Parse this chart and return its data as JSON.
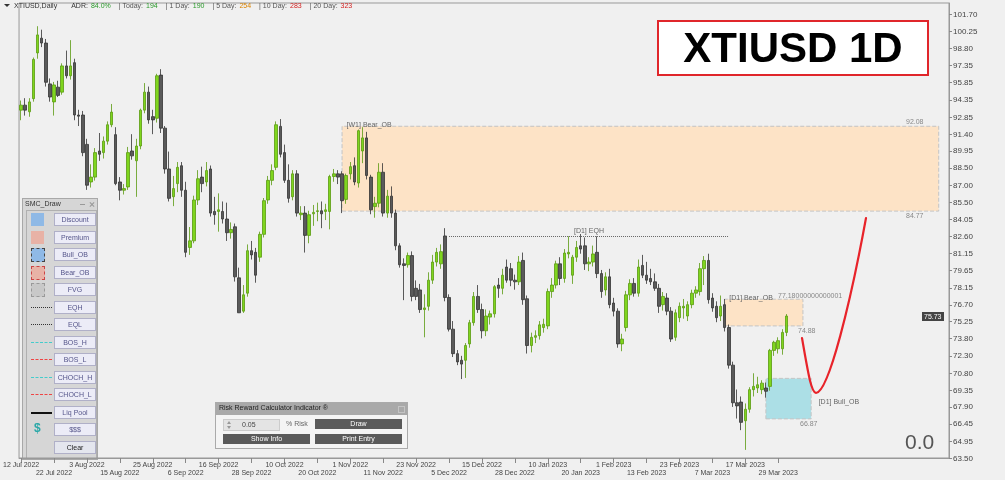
{
  "chart_data": {
    "type": "candlestick",
    "title": "XTIUSD 1D",
    "categories": [
      "12 Jul 2022",
      null,
      null,
      null,
      null,
      null,
      null,
      null,
      "22 Jul 2022",
      null,
      null,
      null,
      null,
      null,
      null,
      null,
      "3 Aug 2022",
      null,
      null,
      null,
      null,
      null,
      null,
      null,
      "15 Aug 2022",
      null,
      null,
      null,
      null,
      null,
      null,
      null,
      "25 Aug 2022",
      null,
      null,
      null,
      null,
      null,
      null,
      null,
      "6 Sep 2022",
      null,
      null,
      null,
      null,
      null,
      null,
      null,
      "16 Sep 2022",
      null,
      null,
      null,
      null,
      null,
      null,
      null,
      "28 Sep 2022",
      null,
      null,
      null,
      null,
      null,
      null,
      null,
      "10 Oct 2022",
      null,
      null,
      null,
      null,
      null,
      null,
      null,
      "20 Oct 2022",
      null,
      null,
      null,
      null,
      null,
      null,
      null,
      "1 Nov 2022",
      null,
      null,
      null,
      null,
      null,
      null,
      null,
      "11 Nov 2022",
      null,
      null,
      null,
      null,
      null,
      null,
      null,
      "23 Nov 2022",
      null,
      null,
      null,
      null,
      null,
      null,
      null,
      "5 Dec 2022",
      null,
      null,
      null,
      null,
      null,
      null,
      null,
      "15 Dec 2022",
      null,
      null,
      null,
      null,
      null,
      null,
      null,
      "28 Dec 2022",
      null,
      null,
      null,
      null,
      null,
      null,
      null,
      "10 Jan 2023",
      null,
      null,
      null,
      null,
      null,
      null,
      null,
      "20 Jan 2023",
      null,
      null,
      null,
      null,
      null,
      null,
      null,
      "1 Feb 2023",
      null,
      null,
      null,
      null,
      null,
      null,
      null,
      "13 Feb 2023",
      null,
      null,
      null,
      null,
      null,
      null,
      null,
      "23 Feb 2023",
      null,
      null,
      null,
      null,
      null,
      null,
      null,
      "7 Mar 2023",
      null,
      null,
      null,
      null,
      null,
      null,
      null,
      "17 Mar 2023",
      null,
      null,
      null,
      null,
      null,
      null,
      null,
      "29 Mar 2023",
      null,
      null,
      null,
      null,
      null,
      null,
      null,
      null,
      null,
      null,
      null,
      null,
      null,
      null,
      null,
      null,
      null,
      null,
      null,
      null,
      null,
      null,
      null,
      null,
      null,
      null,
      null,
      null,
      null,
      null,
      null,
      null,
      null,
      null,
      null,
      null,
      null,
      null,
      null,
      null,
      null
    ],
    "ohlc": [
      [
        93.47,
        94.3,
        92.6,
        93.9
      ],
      [
        93.9,
        94.5,
        93.0,
        93.47
      ],
      [
        93.33,
        94.5,
        92.9,
        94.18
      ],
      [
        94.46,
        98.0,
        94.2,
        97.84
      ],
      [
        98.4,
        100.7,
        97.9,
        99.95
      ],
      [
        99.67,
        100.4,
        98.9,
        99.25
      ],
      [
        99.25,
        99.6,
        95.5,
        95.87
      ],
      [
        95.73,
        96.2,
        94.2,
        94.6
      ],
      [
        94.18,
        95.9,
        93.0,
        95.64
      ],
      [
        95.45,
        96.0,
        94.6,
        94.74
      ],
      [
        95.02,
        97.5,
        94.8,
        97.28
      ],
      [
        97.28,
        98.6,
        96.2,
        96.43
      ],
      [
        96.43,
        99.5,
        96.1,
        97.28
      ],
      [
        97.56,
        97.9,
        92.6,
        93.05
      ],
      [
        93.05,
        93.5,
        92.1,
        92.95
      ],
      [
        93.05,
        93.4,
        89.5,
        89.81
      ],
      [
        90.52,
        91.0,
        86.6,
        87.0
      ],
      [
        87.28,
        88.8,
        86.8,
        87.7
      ],
      [
        87.7,
        90.2,
        87.4,
        89.81
      ],
      [
        89.95,
        91.5,
        89.1,
        89.67
      ],
      [
        89.81,
        91.2,
        89.3,
        90.8
      ],
      [
        90.8,
        92.5,
        90.5,
        92.21
      ],
      [
        92.21,
        94.0,
        92.0,
        93.3
      ],
      [
        91.36,
        92.0,
        87.0,
        87.14
      ],
      [
        87.28,
        87.7,
        85.7,
        86.57
      ],
      [
        86.57,
        87.1,
        86.2,
        86.71
      ],
      [
        86.85,
        90.3,
        86.6,
        89.81
      ],
      [
        89.95,
        91.4,
        89.2,
        89.53
      ],
      [
        89.11,
        91.0,
        86.0,
        90.38
      ],
      [
        90.38,
        93.6,
        90.1,
        93.47
      ],
      [
        93.47,
        95.8,
        93.2,
        95.02
      ],
      [
        95.02,
        95.5,
        92.3,
        92.63
      ],
      [
        92.91,
        93.5,
        91.4,
        92.63
      ],
      [
        92.77,
        96.6,
        92.4,
        96.43
      ],
      [
        96.49,
        97.0,
        91.5,
        91.92
      ],
      [
        91.92,
        92.1,
        88.0,
        88.4
      ],
      [
        88.4,
        89.9,
        85.6,
        85.87
      ],
      [
        86.01,
        87.8,
        85.2,
        86.71
      ],
      [
        87.14,
        89.0,
        86.4,
        88.54
      ],
      [
        88.68,
        89.0,
        86.0,
        86.57
      ],
      [
        86.57,
        87.3,
        80.8,
        81.22
      ],
      [
        81.64,
        83.4,
        81.0,
        82.21
      ],
      [
        82.21,
        86.1,
        82.0,
        85.73
      ],
      [
        85.73,
        88.3,
        85.3,
        87.56
      ],
      [
        87.7,
        88.6,
        86.4,
        87.14
      ],
      [
        87.28,
        89.0,
        86.9,
        88.26
      ],
      [
        88.4,
        88.7,
        84.3,
        84.6
      ],
      [
        84.74,
        86.0,
        83.6,
        84.46
      ],
      [
        84.74,
        86.3,
        83.0,
        84.88
      ],
      [
        84.74,
        85.6,
        83.7,
        84.09
      ],
      [
        84.09,
        85.5,
        82.2,
        82.91
      ],
      [
        82.91,
        83.8,
        82.4,
        83.19
      ],
      [
        83.42,
        83.7,
        78.7,
        79.11
      ],
      [
        79.02,
        79.9,
        76.0,
        76.01
      ],
      [
        76.15,
        78.4,
        76.0,
        77.56
      ],
      [
        77.7,
        81.9,
        77.4,
        81.36
      ],
      [
        81.36,
        82.2,
        80.6,
        81.0
      ],
      [
        81.22,
        81.6,
        78.6,
        79.25
      ],
      [
        80.8,
        83.0,
        80.4,
        82.77
      ],
      [
        82.77,
        85.9,
        82.5,
        85.67
      ],
      [
        85.73,
        87.8,
        85.4,
        87.42
      ],
      [
        87.42,
        88.8,
        87.0,
        88.26
      ],
      [
        88.54,
        92.5,
        88.3,
        92.21
      ],
      [
        92.07,
        92.7,
        89.4,
        89.67
      ],
      [
        89.81,
        90.5,
        87.2,
        87.42
      ],
      [
        87.42,
        88.8,
        85.5,
        85.87
      ],
      [
        86.01,
        88.3,
        85.7,
        87.98
      ],
      [
        87.98,
        88.3,
        84.3,
        84.6
      ],
      [
        84.46,
        85.2,
        84.0,
        84.6
      ],
      [
        84.6,
        85.2,
        81.2,
        82.68
      ],
      [
        82.68,
        84.8,
        82.0,
        84.46
      ],
      [
        84.54,
        85.3,
        83.5,
        84.66
      ],
      [
        84.74,
        85.5,
        83.9,
        84.8
      ],
      [
        84.8,
        85.6,
        83.3,
        84.54
      ],
      [
        84.74,
        85.4,
        84.0,
        84.88
      ],
      [
        84.74,
        87.9,
        83.2,
        87.75
      ],
      [
        87.75,
        88.4,
        87.3,
        87.98
      ],
      [
        87.98,
        88.3,
        87.1,
        87.7
      ],
      [
        87.98,
        88.2,
        84.6,
        85.67
      ],
      [
        85.78,
        88.0,
        85.4,
        87.84
      ],
      [
        87.98,
        89.0,
        87.5,
        88.6
      ],
      [
        88.68,
        89.4,
        87.0,
        87.28
      ],
      [
        87.19,
        91.8,
        86.8,
        91.7
      ],
      [
        89.95,
        92.0,
        88.9,
        91.08
      ],
      [
        91.08,
        91.6,
        87.5,
        87.84
      ],
      [
        87.7,
        87.9,
        84.5,
        84.88
      ],
      [
        85.16,
        86.0,
        84.2,
        85.45
      ],
      [
        85.45,
        88.9,
        85.1,
        88.12
      ],
      [
        88.12,
        88.9,
        84.3,
        84.6
      ],
      [
        84.6,
        86.6,
        84.2,
        86.06
      ],
      [
        86.06,
        86.9,
        84.2,
        84.6
      ],
      [
        84.6,
        84.9,
        81.4,
        81.78
      ],
      [
        81.78,
        82.0,
        79.9,
        80.15
      ],
      [
        80.23,
        80.7,
        77.1,
        80.09
      ],
      [
        80.15,
        81.2,
        79.9,
        80.94
      ],
      [
        80.94,
        81.3,
        77.0,
        77.42
      ],
      [
        78.12,
        78.8,
        77.1,
        77.42
      ],
      [
        77.98,
        78.5,
        76.0,
        76.29
      ],
      [
        76.29,
        77.6,
        73.9,
        76.43
      ],
      [
        76.57,
        79.5,
        76.2,
        78.82
      ],
      [
        78.82,
        81.0,
        78.5,
        80.38
      ],
      [
        80.38,
        81.6,
        80.0,
        81.22
      ],
      [
        80.23,
        81.9,
        79.8,
        81.28
      ],
      [
        82.63,
        83.3,
        77.0,
        77.33
      ],
      [
        77.33,
        77.6,
        74.4,
        74.6
      ],
      [
        74.6,
        75.3,
        72.2,
        72.49
      ],
      [
        72.49,
        72.8,
        71.5,
        71.78
      ],
      [
        71.92,
        72.3,
        70.3,
        71.59
      ],
      [
        71.92,
        73.4,
        70.4,
        73.19
      ],
      [
        73.33,
        75.4,
        73.0,
        75.16
      ],
      [
        75.16,
        77.8,
        74.9,
        77.42
      ],
      [
        77.42,
        78.4,
        76.0,
        76.29
      ],
      [
        76.29,
        76.8,
        73.8,
        74.46
      ],
      [
        74.46,
        76.3,
        74.0,
        75.73
      ],
      [
        75.64,
        76.2,
        75.0,
        75.92
      ],
      [
        75.92,
        78.4,
        75.6,
        78.26
      ],
      [
        78.4,
        79.0,
        77.3,
        78.12
      ],
      [
        78.12,
        79.8,
        77.6,
        79.25
      ],
      [
        79.95,
        80.6,
        78.6,
        78.82
      ],
      [
        79.81,
        80.3,
        78.3,
        78.82
      ],
      [
        78.82,
        79.3,
        78.0,
        78.68
      ],
      [
        78.68,
        80.9,
        78.4,
        80.38
      ],
      [
        80.52,
        81.2,
        76.7,
        77.14
      ],
      [
        77.22,
        77.5,
        72.5,
        73.19
      ],
      [
        73.19,
        74.3,
        72.6,
        73.9
      ],
      [
        73.9,
        74.5,
        73.4,
        74.04
      ],
      [
        74.04,
        75.3,
        73.7,
        74.97
      ],
      [
        74.74,
        75.5,
        74.3,
        75.02
      ],
      [
        74.88,
        78.1,
        74.6,
        77.84
      ],
      [
        77.84,
        79.0,
        77.3,
        78.4
      ],
      [
        78.4,
        80.5,
        78.1,
        80.23
      ],
      [
        80.23,
        80.8,
        78.4,
        78.97
      ],
      [
        78.97,
        81.5,
        78.6,
        81.16
      ],
      [
        81.08,
        82.6,
        80.7,
        81.22
      ],
      [
        79.25,
        81.0,
        78.5,
        80.8
      ],
      [
        80.8,
        82.2,
        80.4,
        81.64
      ],
      [
        81.78,
        82.8,
        81.1,
        81.5
      ],
      [
        81.78,
        82.5,
        79.7,
        80.23
      ],
      [
        80.23,
        80.8,
        79.6,
        80.38
      ],
      [
        80.38,
        81.8,
        80.0,
        81.08
      ],
      [
        81.22,
        82.6,
        79.0,
        79.39
      ],
      [
        79.39,
        79.7,
        77.3,
        77.84
      ],
      [
        77.98,
        79.5,
        77.5,
        79.11
      ],
      [
        79.11,
        79.8,
        76.4,
        76.71
      ],
      [
        76.85,
        77.3,
        75.7,
        76.15
      ],
      [
        76.15,
        76.4,
        73.0,
        73.33
      ],
      [
        73.33,
        74.2,
        72.7,
        73.75
      ],
      [
        74.74,
        77.9,
        74.4,
        77.56
      ],
      [
        77.56,
        78.9,
        77.1,
        78.54
      ],
      [
        78.54,
        79.0,
        77.4,
        77.7
      ],
      [
        77.7,
        80.6,
        77.4,
        79.95
      ],
      [
        80.09,
        81.0,
        79.0,
        79.25
      ],
      [
        79.25,
        80.4,
        78.5,
        78.82
      ],
      [
        78.97,
        79.8,
        78.4,
        78.68
      ],
      [
        78.68,
        79.4,
        77.9,
        78.12
      ],
      [
        78.12,
        78.5,
        76.0,
        76.57
      ],
      [
        76.71,
        77.8,
        76.2,
        77.42
      ],
      [
        77.28,
        77.7,
        75.8,
        76.15
      ],
      [
        76.15,
        76.5,
        73.5,
        73.75
      ],
      [
        73.9,
        76.3,
        73.6,
        76.01
      ],
      [
        75.59,
        76.9,
        75.2,
        76.57
      ],
      [
        76.43,
        77.2,
        75.5,
        76.57
      ],
      [
        75.73,
        77.0,
        75.3,
        76.71
      ],
      [
        76.71,
        78.0,
        76.4,
        77.7
      ],
      [
        77.7,
        78.3,
        77.3,
        77.98
      ],
      [
        77.84,
        80.3,
        77.5,
        79.81
      ],
      [
        79.81,
        80.9,
        78.4,
        80.52
      ],
      [
        80.52,
        81.1,
        76.8,
        77.14
      ],
      [
        77.28,
        77.7,
        76.1,
        76.43
      ],
      [
        76.57,
        77.0,
        75.2,
        75.59
      ],
      [
        75.73,
        77.5,
        75.3,
        76.57
      ],
      [
        76.71,
        77.2,
        74.4,
        74.74
      ],
      [
        74.74,
        75.0,
        71.2,
        71.5
      ],
      [
        71.5,
        71.8,
        67.9,
        68.26
      ],
      [
        68.26,
        69.4,
        66.9,
        67.99
      ],
      [
        68.32,
        68.8,
        65.9,
        66.57
      ],
      [
        66.71,
        68.2,
        64.2,
        67.7
      ],
      [
        67.7,
        69.6,
        67.4,
        69.39
      ],
      [
        69.39,
        70.8,
        68.8,
        69.67
      ],
      [
        69.53,
        70.5,
        69.1,
        69.81
      ],
      [
        69.39,
        70.2,
        69.0,
        69.95
      ],
      [
        69.53,
        70.0,
        68.7,
        69.25
      ],
      [
        69.67,
        72.9,
        69.3,
        72.77
      ],
      [
        72.77,
        73.6,
        72.3,
        73.47
      ],
      [
        72.91,
        73.9,
        72.5,
        73.61
      ],
      [
        72.91,
        74.6,
        72.4,
        74.32
      ],
      [
        74.32,
        75.9,
        74.0,
        75.73
      ],
      null,
      null,
      null,
      null,
      null,
      null,
      null,
      null,
      null,
      null,
      null,
      null,
      null,
      null,
      null,
      null,
      null,
      null,
      null,
      null,
      null,
      null,
      null,
      null,
      null,
      null,
      null,
      null,
      null,
      null,
      null,
      null,
      null,
      null,
      null,
      null,
      null,
      null,
      null
    ],
    "ylim": [
      63.5,
      102.7
    ],
    "yticks": [
      {
        "value": 101.7,
        "label": "101.70"
      },
      {
        "value": 100.25,
        "label": "100.25"
      },
      {
        "value": 98.8,
        "label": "98.80"
      },
      {
        "value": 97.35,
        "label": "97.35"
      },
      {
        "value": 95.85,
        "label": "95.85"
      },
      {
        "value": 94.35,
        "label": "94.35"
      },
      {
        "value": 92.85,
        "label": "92.85"
      },
      {
        "value": 91.4,
        "label": "91.40"
      },
      {
        "value": 89.95,
        "label": "89.95"
      },
      {
        "value": 88.5,
        "label": "88.50"
      },
      {
        "value": 87,
        "label": "87.00"
      },
      {
        "value": 85.5,
        "label": "85.50"
      },
      {
        "value": 84.05,
        "label": "84.05"
      },
      {
        "value": 82.6,
        "label": "82.60"
      },
      {
        "value": 81.15,
        "label": "81.15"
      },
      {
        "value": 79.65,
        "label": "79.65"
      },
      {
        "value": 78.15,
        "label": "78.15"
      },
      {
        "value": 76.7,
        "label": "76.70"
      },
      {
        "value": 75.25,
        "label": "75.25"
      },
      {
        "value": 73.8,
        "label": "73.80"
      },
      {
        "value": 72.3,
        "label": "72.30"
      },
      {
        "value": 70.8,
        "label": "70.80"
      },
      {
        "value": 69.35,
        "label": "69.35"
      },
      {
        "value": 67.9,
        "label": "67.90"
      },
      {
        "value": 66.45,
        "label": "66.45"
      },
      {
        "value": 64.95,
        "label": "64.95"
      },
      {
        "value": 63.5,
        "label": "63.50"
      }
    ],
    "bands": [
      {
        "axis": "y",
        "from": 84.77,
        "to": 92.08,
        "label": "[W1] Bear_OB",
        "color": "#fde3c6"
      },
      {
        "axis": "y",
        "from": 74.88,
        "to": 77.18,
        "label": "[D1] Bear_OB",
        "color": "#fde3c6"
      },
      {
        "axis": "y",
        "from": 66.87,
        "to": 70.36,
        "label": "[D1] Bull_OB",
        "color": "#acdfe6"
      }
    ],
    "ref_lines": [
      {
        "axis": "y",
        "value": 82.62,
        "label": "[D1] EQH",
        "color": "#666666",
        "line_style": "dotted"
      }
    ],
    "annotations": [
      "XTIUSD,Daily",
      "ADR:",
      "84.0%",
      "| Today:",
      "194",
      "| 1 Day:",
      "190",
      "| 5 Day:",
      "254",
      "| 10 Day:",
      "283",
      "| 20 Day:",
      "323",
      "SMC_Draw",
      "Discount",
      "Premium",
      "Bull_OB",
      "Bear_OB",
      "FVG",
      "EQH",
      "EQL",
      "BOS_H",
      "BOS_L",
      "CHOCH_H",
      "CHOCH_L",
      "Liq Pool",
      "$$$",
      "Clear",
      "$",
      "Risk Reward Calculator Indicator ®",
      "0.05",
      "% Risk",
      "Draw",
      "Show Info",
      "Print Entry",
      "0.0",
      {
        "text": "92.08",
        "y": 92.08
      },
      {
        "text": "84.77",
        "y": 84.77
      },
      "77.18000000000001",
      {
        "text": "74.88",
        "y": 74.88
      },
      {
        "text": "66.87",
        "y": 66.87
      },
      {
        "text": "75.73",
        "y": 75.73
      }
    ]
  }
}
